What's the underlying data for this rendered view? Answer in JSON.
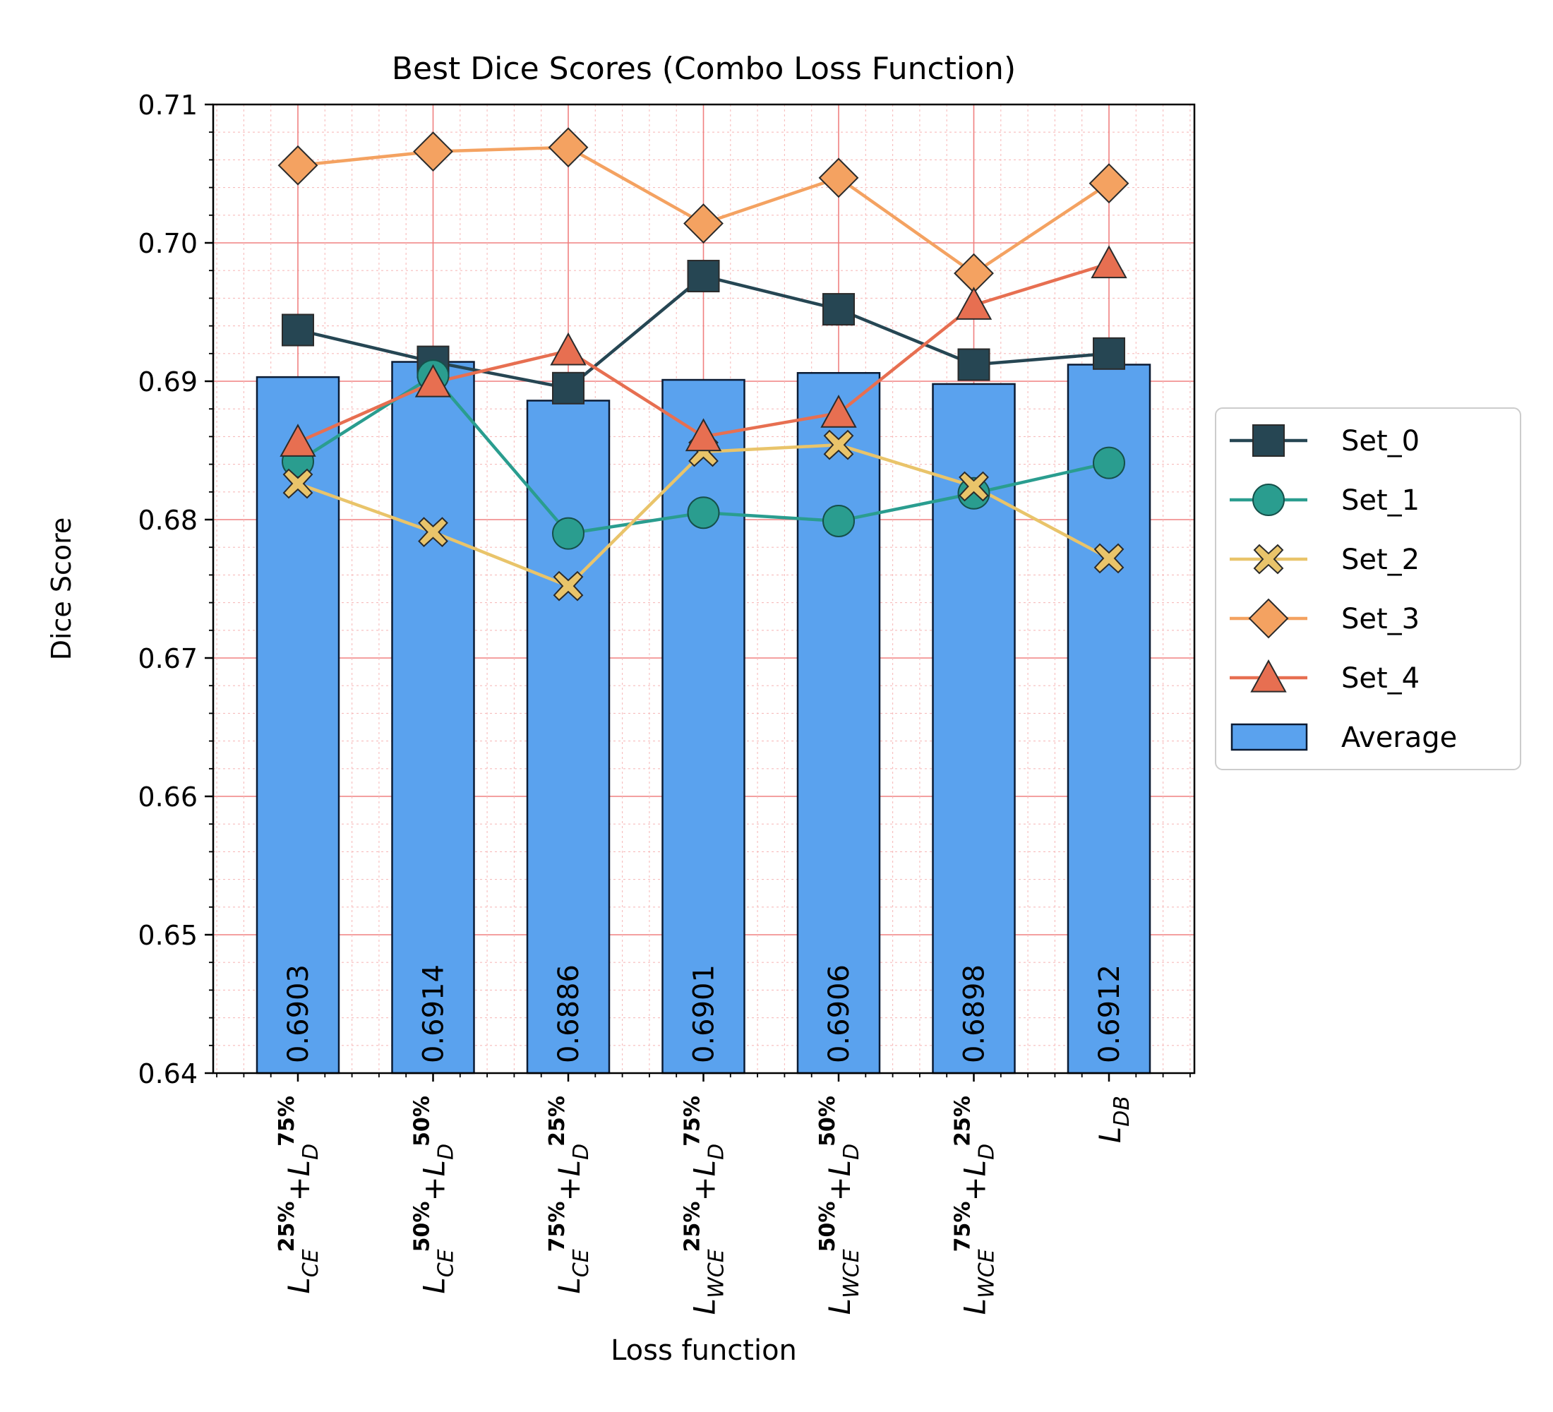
{
  "chart_data": {
    "type": "bar",
    "title": "Best Dice Scores (Combo Loss Function)",
    "xlabel": "Loss function",
    "ylabel": "Dice Score",
    "ylim": [
      0.64,
      0.71
    ],
    "yticks": [
      "0.64",
      "0.65",
      "0.66",
      "0.67",
      "0.68",
      "0.69",
      "0.70",
      "0.71"
    ],
    "grid": true,
    "legend_position": "right",
    "categories": [
      {
        "main": "L",
        "sub": "CE",
        "sup": "25%",
        "plus": "+",
        "main2": "L",
        "sub2": "D",
        "sup2": "75%"
      },
      {
        "main": "L",
        "sub": "CE",
        "sup": "50%",
        "plus": "+",
        "main2": "L",
        "sub2": "D",
        "sup2": "50%"
      },
      {
        "main": "L",
        "sub": "CE",
        "sup": "75%",
        "plus": "+",
        "main2": "L",
        "sub2": "D",
        "sup2": "25%"
      },
      {
        "main": "L",
        "sub": "WCE",
        "sup": "25%",
        "plus": "+",
        "main2": "L",
        "sub2": "D",
        "sup2": "75%"
      },
      {
        "main": "L",
        "sub": "WCE",
        "sup": "50%",
        "plus": "+",
        "main2": "L",
        "sub2": "D",
        "sup2": "50%"
      },
      {
        "main": "L",
        "sub": "WCE",
        "sup": "75%",
        "plus": "+",
        "main2": "L",
        "sub2": "D",
        "sup2": "25%"
      },
      {
        "main": "L",
        "sub": "DB"
      }
    ],
    "average": {
      "name": "Average",
      "color": "#5aa2ee",
      "values": [
        0.6903,
        0.6914,
        0.6886,
        0.6901,
        0.6906,
        0.6898,
        0.6912
      ],
      "labels": [
        "0.6903",
        "0.6914",
        "0.6886",
        "0.6901",
        "0.6906",
        "0.6898",
        "0.6912"
      ]
    },
    "series": [
      {
        "name": "Set_0",
        "color": "#264653",
        "marker": "square",
        "values": [
          0.6937,
          0.6914,
          0.6895,
          0.6976,
          0.6952,
          0.6912,
          0.692
        ]
      },
      {
        "name": "Set_1",
        "color": "#2a9d8f",
        "marker": "circle",
        "values": [
          0.6842,
          0.6904,
          0.679,
          0.6805,
          0.6799,
          0.6819,
          0.6841
        ]
      },
      {
        "name": "Set_2",
        "color": "#e9c46a",
        "marker": "x",
        "values": [
          0.6826,
          0.6791,
          0.6752,
          0.6849,
          0.6854,
          0.6824,
          0.6772
        ]
      },
      {
        "name": "Set_3",
        "color": "#f4a261",
        "marker": "diamond",
        "values": [
          0.7056,
          0.7066,
          0.7069,
          0.7014,
          0.7047,
          0.6978,
          0.7043
        ]
      },
      {
        "name": "Set_4",
        "color": "#e76f51",
        "marker": "triangle",
        "values": [
          0.6856,
          0.6899,
          0.6922,
          0.686,
          0.6877,
          0.6955,
          0.6985
        ]
      }
    ]
  }
}
